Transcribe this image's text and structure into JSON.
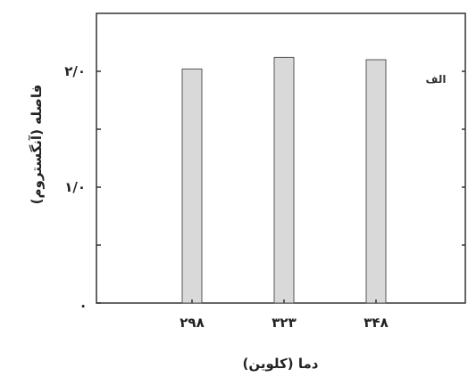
{
  "chart_data": {
    "type": "bar",
    "categories": [
      "۲۹۸",
      "۳۲۳",
      "۳۴۸"
    ],
    "values": [
      2.02,
      2.12,
      2.1
    ],
    "xlabel": "دما (کلوین)",
    "ylabel": "فاصله (آنگستروم)",
    "ylim": [
      0,
      2.5
    ],
    "y_ticks": [
      {
        "value": 0,
        "label": "."
      },
      {
        "value": 1,
        "label": "۱/۰"
      },
      {
        "value": 2,
        "label": "۲/۰"
      }
    ],
    "annotation": "الف",
    "grid": false,
    "bar_color": "#d9d9d9",
    "bar_edge_color": "#555555"
  }
}
